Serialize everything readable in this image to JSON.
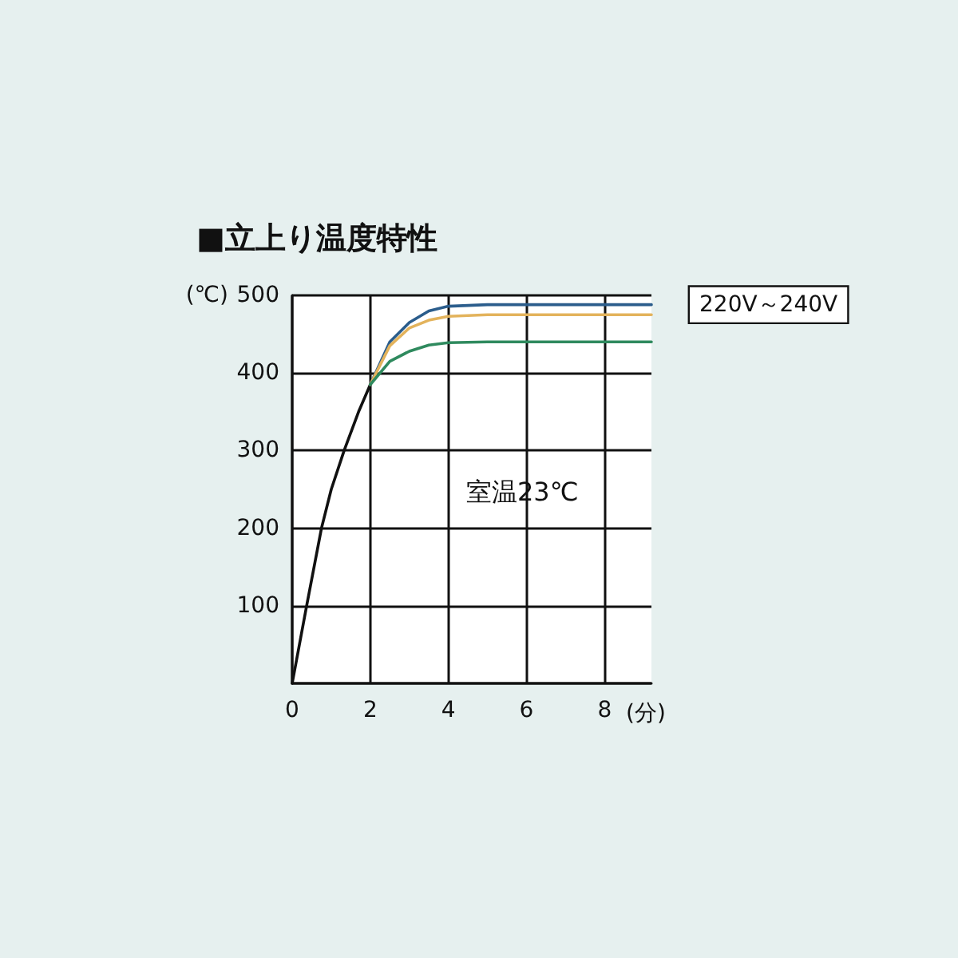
{
  "chart_data": {
    "type": "line",
    "title": "■立上り温度特性",
    "xlabel": "(分)",
    "ylabel": "(℃)",
    "annotations": [
      "室温23℃"
    ],
    "xlim": [
      0,
      9.2
    ],
    "xticks": [
      0,
      2,
      4,
      6,
      8
    ],
    "ylim": [
      0,
      500
    ],
    "yticks": [
      {
        "value": 0,
        "label": null
      },
      100,
      200,
      300,
      400,
      500
    ],
    "grid": true,
    "marker": "none",
    "line_style": "solid",
    "series": [
      {
        "color": "#111111",
        "x": [
          0,
          0.37,
          0.75,
          1.0,
          1.33,
          1.7,
          2.0
        ],
        "values": [
          0,
          100,
          200,
          250,
          300,
          350,
          385
        ]
      },
      {
        "name": "220V～240V",
        "color": "#2b5d8c",
        "x": [
          2.0,
          2.5,
          3.0,
          3.5,
          4.0,
          5.0,
          9.2
        ],
        "values": [
          385,
          440,
          465,
          480,
          486,
          488,
          488
        ]
      },
      {
        "color": "#e3b35c",
        "x": [
          2.0,
          2.5,
          3.0,
          3.5,
          4.0,
          5.0,
          9.2
        ],
        "values": [
          385,
          435,
          458,
          468,
          473,
          475,
          475
        ]
      },
      {
        "color": "#2f8a5e",
        "x": [
          2.0,
          2.5,
          3.0,
          3.5,
          4.0,
          5.0,
          9.2
        ],
        "values": [
          385,
          415,
          428,
          436,
          439,
          440,
          440
        ]
      }
    ]
  }
}
